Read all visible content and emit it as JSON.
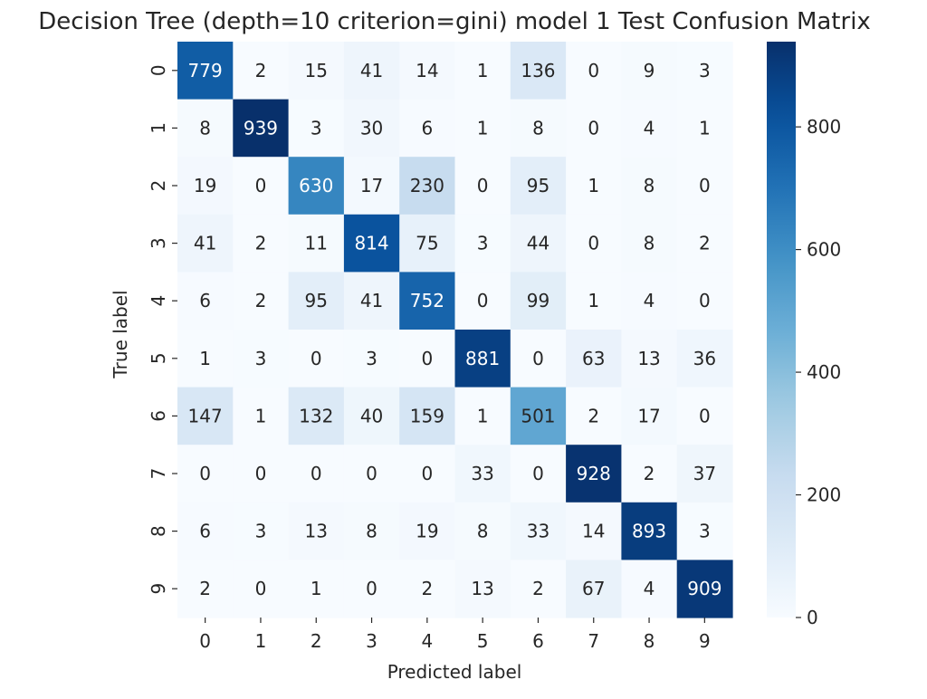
{
  "chart_data": {
    "type": "heatmap",
    "title": "Decision Tree (depth=10 criterion=gini) model 1 Test Confusion Matrix",
    "xlabel": "Predicted label",
    "ylabel": "True label",
    "x_categories": [
      "0",
      "1",
      "2",
      "3",
      "4",
      "5",
      "6",
      "7",
      "8",
      "9"
    ],
    "y_categories": [
      "0",
      "1",
      "2",
      "3",
      "4",
      "5",
      "6",
      "7",
      "8",
      "9"
    ],
    "values": [
      [
        779,
        2,
        15,
        41,
        14,
        1,
        136,
        0,
        9,
        3
      ],
      [
        8,
        939,
        3,
        30,
        6,
        1,
        8,
        0,
        4,
        1
      ],
      [
        19,
        0,
        630,
        17,
        230,
        0,
        95,
        1,
        8,
        0
      ],
      [
        41,
        2,
        11,
        814,
        75,
        3,
        44,
        0,
        8,
        2
      ],
      [
        6,
        2,
        95,
        41,
        752,
        0,
        99,
        1,
        4,
        0
      ],
      [
        1,
        3,
        0,
        3,
        0,
        881,
        0,
        63,
        13,
        36
      ],
      [
        147,
        1,
        132,
        40,
        159,
        1,
        501,
        2,
        17,
        0
      ],
      [
        0,
        0,
        0,
        0,
        0,
        33,
        0,
        928,
        2,
        37
      ],
      [
        6,
        3,
        13,
        8,
        19,
        8,
        33,
        14,
        893,
        3
      ],
      [
        2,
        0,
        1,
        0,
        2,
        13,
        2,
        67,
        4,
        909
      ]
    ],
    "colormap": "Blues",
    "colorbar": {
      "min": 0,
      "max": 939,
      "ticks": [
        0,
        200,
        400,
        600,
        800
      ]
    },
    "grid": false
  }
}
